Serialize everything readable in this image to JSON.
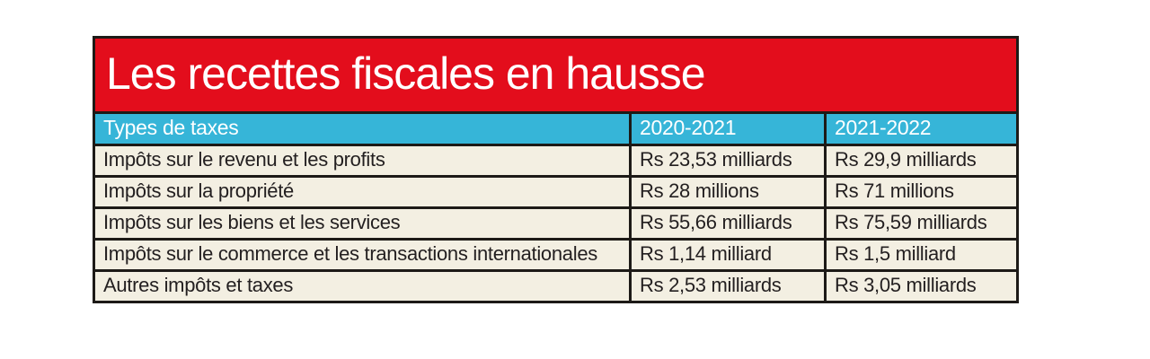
{
  "colors": {
    "banner_red": "#e30d1c",
    "header_cyan": "#36b5d8",
    "row_cream": "#f3efe2",
    "border_black": "#1d1a17",
    "title_text": "#ffffff",
    "cell_text": "#231f20"
  },
  "chart_data": {
    "type": "table",
    "title": "Les recettes fiscales en hausse",
    "columns": [
      "Types de taxes",
      "2020-2021",
      "2021-2022"
    ],
    "rows": [
      [
        "Impôts sur le revenu et les profits",
        "Rs 23,53 milliards",
        "Rs 29,9 milliards"
      ],
      [
        "Impôts sur la propriété",
        "Rs 28 millions",
        "Rs 71 millions"
      ],
      [
        "Impôts sur les biens et les services",
        "Rs 55,66 milliards",
        "Rs 75,59 milliards"
      ],
      [
        "Impôts sur le commerce et les transactions internationales",
        "Rs 1,14 milliard",
        "Rs 1,5 milliard"
      ],
      [
        "Autres impôts et taxes",
        "Rs 2,53 milliards",
        "Rs 3,05 milliards"
      ]
    ],
    "layout": {
      "legend": "none",
      "grid": "black cell borders",
      "currency": "Rs (roupies)"
    }
  }
}
